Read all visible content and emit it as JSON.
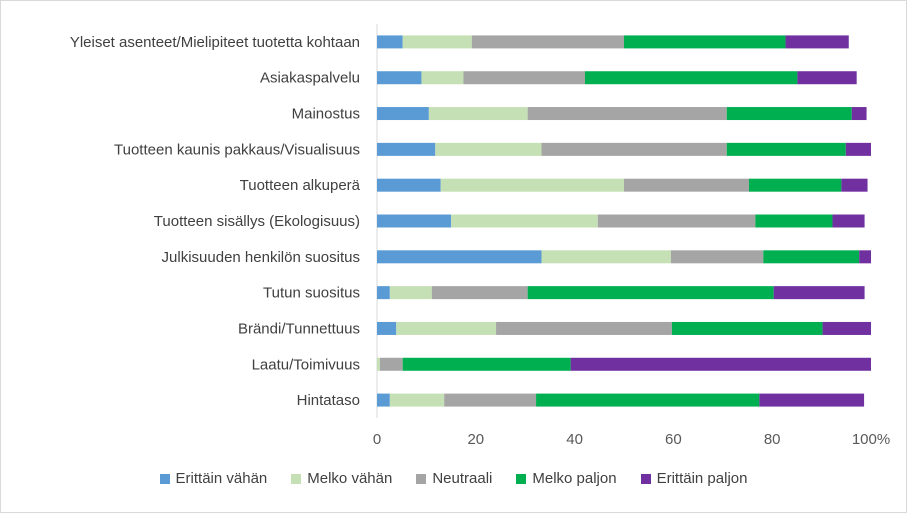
{
  "chart_data": {
    "type": "bar",
    "orientation": "horizontal",
    "stacked": true,
    "categories": [
      "Yleiset asenteet/Mielipiteet tuotetta kohtaan",
      "Asiakaspalvelu",
      "Mainostus",
      "Tuotteen kaunis pakkaus/Visualisuus",
      "Tuotteen alkuperä",
      "Tuotteen sisällys (Ekologisuus)",
      "Julkisuuden henkilön suositus",
      "Tutun suositus",
      "Brändi/Tunnettuus",
      "Laatu/Toimivuus",
      "Hintataso"
    ],
    "series": [
      {
        "name": "Erittäin vähän",
        "color": "#5b9bd5",
        "values": [
          5.2,
          9.0,
          10.5,
          11.8,
          12.9,
          15.0,
          33.3,
          2.6,
          3.9,
          0,
          2.6
        ]
      },
      {
        "name": "Melko vähän",
        "color": "#c5e0b4",
        "values": [
          14.0,
          8.5,
          20.0,
          21.5,
          37.1,
          29.7,
          26.2,
          8.5,
          20.2,
          0.6,
          11.0
        ]
      },
      {
        "name": "Neutraali",
        "color": "#a5a5a5",
        "values": [
          30.8,
          24.6,
          40.3,
          37.5,
          25.3,
          31.9,
          18.7,
          19.4,
          35.6,
          4.6,
          18.6
        ]
      },
      {
        "name": "Melko paljon",
        "color": "#00b050",
        "values": [
          32.7,
          43.0,
          25.3,
          24.1,
          18.7,
          15.6,
          19.4,
          49.8,
          30.5,
          34.0,
          45.2
        ]
      },
      {
        "name": "Erittäin paljon",
        "color": "#7030a0",
        "values": [
          12.8,
          12.0,
          3.0,
          5.1,
          5.3,
          6.5,
          2.4,
          18.4,
          9.8,
          60.8,
          21.2
        ]
      }
    ],
    "x_ticks": [
      "0",
      "20",
      "40",
      "60",
      "80",
      "100%"
    ],
    "xlim": [
      0,
      100
    ],
    "grid": false,
    "legend_position": "bottom"
  }
}
